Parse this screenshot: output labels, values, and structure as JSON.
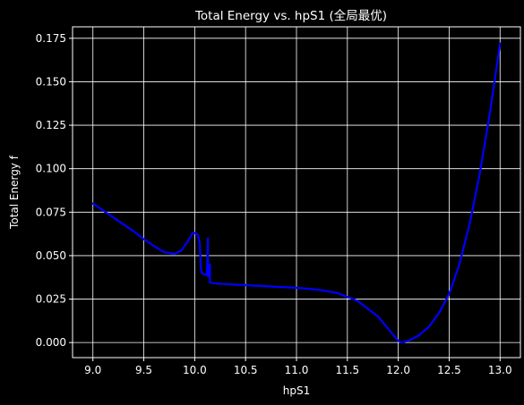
{
  "chart_data": {
    "type": "line",
    "title": "Total Energy vs. hpS1 (全局最优)",
    "xlabel": "hpS1",
    "ylabel": "Total Energy f",
    "xlim": [
      8.8,
      13.2
    ],
    "ylim": [
      -0.00866,
      0.1816
    ],
    "x_ticks": [
      {
        "value": 9.0,
        "label": "9.0"
      },
      {
        "value": 9.5,
        "label": "9.5"
      },
      {
        "value": 10.0,
        "label": "10.0"
      },
      {
        "value": 10.5,
        "label": "10.5"
      },
      {
        "value": 11.0,
        "label": "11.0"
      },
      {
        "value": 11.5,
        "label": "11.5"
      },
      {
        "value": 12.0,
        "label": "12.0"
      },
      {
        "value": 12.5,
        "label": "12.5"
      },
      {
        "value": 13.0,
        "label": "13.0"
      }
    ],
    "y_ticks": [
      {
        "value": 0.0,
        "label": "0.000"
      },
      {
        "value": 0.025,
        "label": "0.025"
      },
      {
        "value": 0.05,
        "label": "0.050"
      },
      {
        "value": 0.075,
        "label": "0.075"
      },
      {
        "value": 0.1,
        "label": "0.100"
      },
      {
        "value": 0.125,
        "label": "0.125"
      },
      {
        "value": 0.15,
        "label": "0.150"
      },
      {
        "value": 0.175,
        "label": "0.175"
      }
    ],
    "grid": true,
    "background": "#000000",
    "text_color": "#ffffff",
    "series": [
      {
        "color": "#0000ff",
        "x": [
          9.0,
          9.1,
          9.2,
          9.3,
          9.4,
          9.5,
          9.6,
          9.7,
          9.8,
          9.87,
          9.93,
          9.98,
          10.0,
          10.03,
          10.05,
          10.06,
          10.07,
          10.1,
          10.12,
          10.13,
          10.13,
          10.14,
          10.15,
          10.15,
          10.2,
          10.5,
          11.0,
          11.2,
          11.4,
          11.6,
          11.8,
          11.9,
          12.0,
          12.03,
          12.1,
          12.2,
          12.3,
          12.4,
          12.5,
          12.6,
          12.7,
          12.8,
          12.9,
          13.0
        ],
        "y": [
          0.08,
          0.076,
          0.072,
          0.068,
          0.064,
          0.0595,
          0.0555,
          0.052,
          0.051,
          0.053,
          0.058,
          0.063,
          0.063,
          0.062,
          0.057,
          0.043,
          0.04,
          0.039,
          0.039,
          0.06,
          0.038,
          0.04,
          0.045,
          0.0345,
          0.034,
          0.033,
          0.0315,
          0.0305,
          0.0285,
          0.024,
          0.015,
          0.008,
          0.001,
          0.0,
          0.001,
          0.004,
          0.009,
          0.017,
          0.028,
          0.045,
          0.068,
          0.097,
          0.132,
          0.172
        ]
      }
    ]
  }
}
